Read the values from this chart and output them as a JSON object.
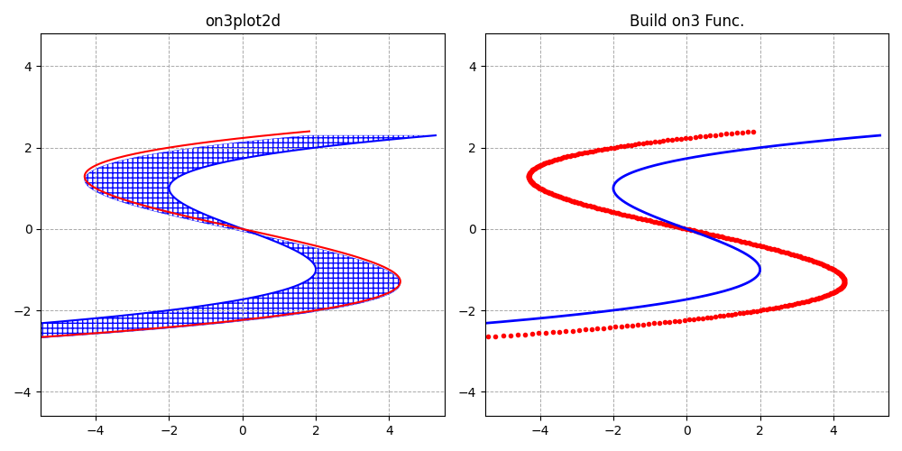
{
  "title_left": "on3plot2d",
  "title_right": "Build on3 Func.",
  "xlim": [
    -5.5,
    5.5
  ],
  "ylim": [
    -4.5,
    4.8
  ],
  "xticks": [
    -4,
    -2,
    0,
    2,
    4
  ],
  "yticks": [
    -4,
    -2,
    0,
    2,
    4
  ],
  "grid_color": "#aaaaaa",
  "background": "#ffffff",
  "red_color": "#ff0000",
  "blue_color": "#0000ff",
  "blue_dot_color": "#0000cc",
  "t_range": [
    -4.2,
    4.2
  ],
  "n_points": 500
}
